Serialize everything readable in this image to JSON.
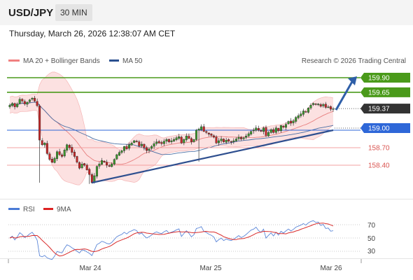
{
  "header": {
    "symbol": "USD/JPY",
    "timeframe": "30 MIN",
    "datetime": "Thursday, March 26, 2026 12:38:07 AM CET"
  },
  "price_panel": {
    "legend": [
      {
        "label": "MA 20 + Bollinger Bands",
        "color": "#f08080"
      },
      {
        "label": "MA 50",
        "color": "#2a4f8f"
      }
    ],
    "watermark": "Research © 2026 Trading Central",
    "levels": [
      {
        "label": "159.90",
        "kind": "resistance-box",
        "color": "#4a9a1a"
      },
      {
        "label": "159.65",
        "kind": "resistance-box",
        "color": "#4a9a1a"
      },
      {
        "label": "159.37",
        "kind": "last-price",
        "color": "#333333"
      },
      {
        "label": "159.00",
        "kind": "pivot-box",
        "color": "#2e67d8"
      },
      {
        "label": "158.70",
        "kind": "support-text",
        "color": "#d9534f"
      },
      {
        "label": "158.40",
        "kind": "support-text",
        "color": "#d9534f"
      }
    ]
  },
  "rsi_panel": {
    "legend": [
      {
        "label": "RSI",
        "color": "#4a7bd6"
      },
      {
        "label": "9MA",
        "color": "#dd2222"
      }
    ],
    "ticks": [
      "70",
      "50",
      "30"
    ]
  },
  "x_axis": {
    "labels": [
      "Mar 24",
      "Mar 25",
      "Mar 26"
    ]
  },
  "chart_data": {
    "type": "candlestick",
    "series": [
      {
        "name": "MA 20 + Bollinger Bands"
      },
      {
        "name": "MA 50"
      },
      {
        "name": "RSI"
      },
      {
        "name": "9MA"
      }
    ],
    "y_range": [
      158.06,
      160.32
    ],
    "levels": [
      159.9,
      159.65,
      159.37,
      159.0,
      158.7,
      158.4
    ],
    "close": [
      159.43,
      159.46,
      159.4,
      159.45,
      159.53,
      159.5,
      159.45,
      159.48,
      159.52,
      159.55,
      159.5,
      159.42,
      158.83,
      158.75,
      158.78,
      158.6,
      158.5,
      158.45,
      158.52,
      158.63,
      158.58,
      158.55,
      158.66,
      158.75,
      158.7,
      158.62,
      158.55,
      158.45,
      158.35,
      158.42,
      158.4,
      158.32,
      158.24,
      158.1,
      158.22,
      158.38,
      158.42,
      158.48,
      158.45,
      158.4,
      158.38,
      158.42,
      158.5,
      158.58,
      158.62,
      158.65,
      158.72,
      158.68,
      158.75,
      158.78,
      158.82,
      158.8,
      158.73,
      158.76,
      158.7,
      158.65,
      158.68,
      158.72,
      158.77,
      158.8,
      158.78,
      158.77,
      158.81,
      158.84,
      158.8,
      158.82,
      158.84,
      158.87,
      158.89,
      158.78,
      158.84,
      158.9,
      158.86,
      158.8,
      158.84,
      159.0,
      159.02,
      159.06,
      158.98,
      158.96,
      158.93,
      158.91,
      158.88,
      158.78,
      158.82,
      158.85,
      158.8,
      158.83,
      158.81,
      158.8,
      158.82,
      158.85,
      158.88,
      158.85,
      158.87,
      158.9,
      158.94,
      158.98,
      159.0,
      159.04,
      159.0,
      158.98,
      159.04,
      158.91,
      158.96,
      159.01,
      158.96,
      159.04,
      158.99,
      159.08,
      159.05,
      159.1,
      159.15,
      159.12,
      159.16,
      159.22,
      159.25,
      159.28,
      159.33,
      159.31,
      159.38,
      159.43,
      159.46,
      159.44,
      159.45,
      159.41,
      159.44,
      159.39,
      159.4,
      159.36,
      159.37
    ],
    "x_labels": [
      "Mar 24",
      "Mar 25",
      "Mar 26"
    ],
    "rsi_ticks": [
      70,
      50,
      30
    ]
  }
}
